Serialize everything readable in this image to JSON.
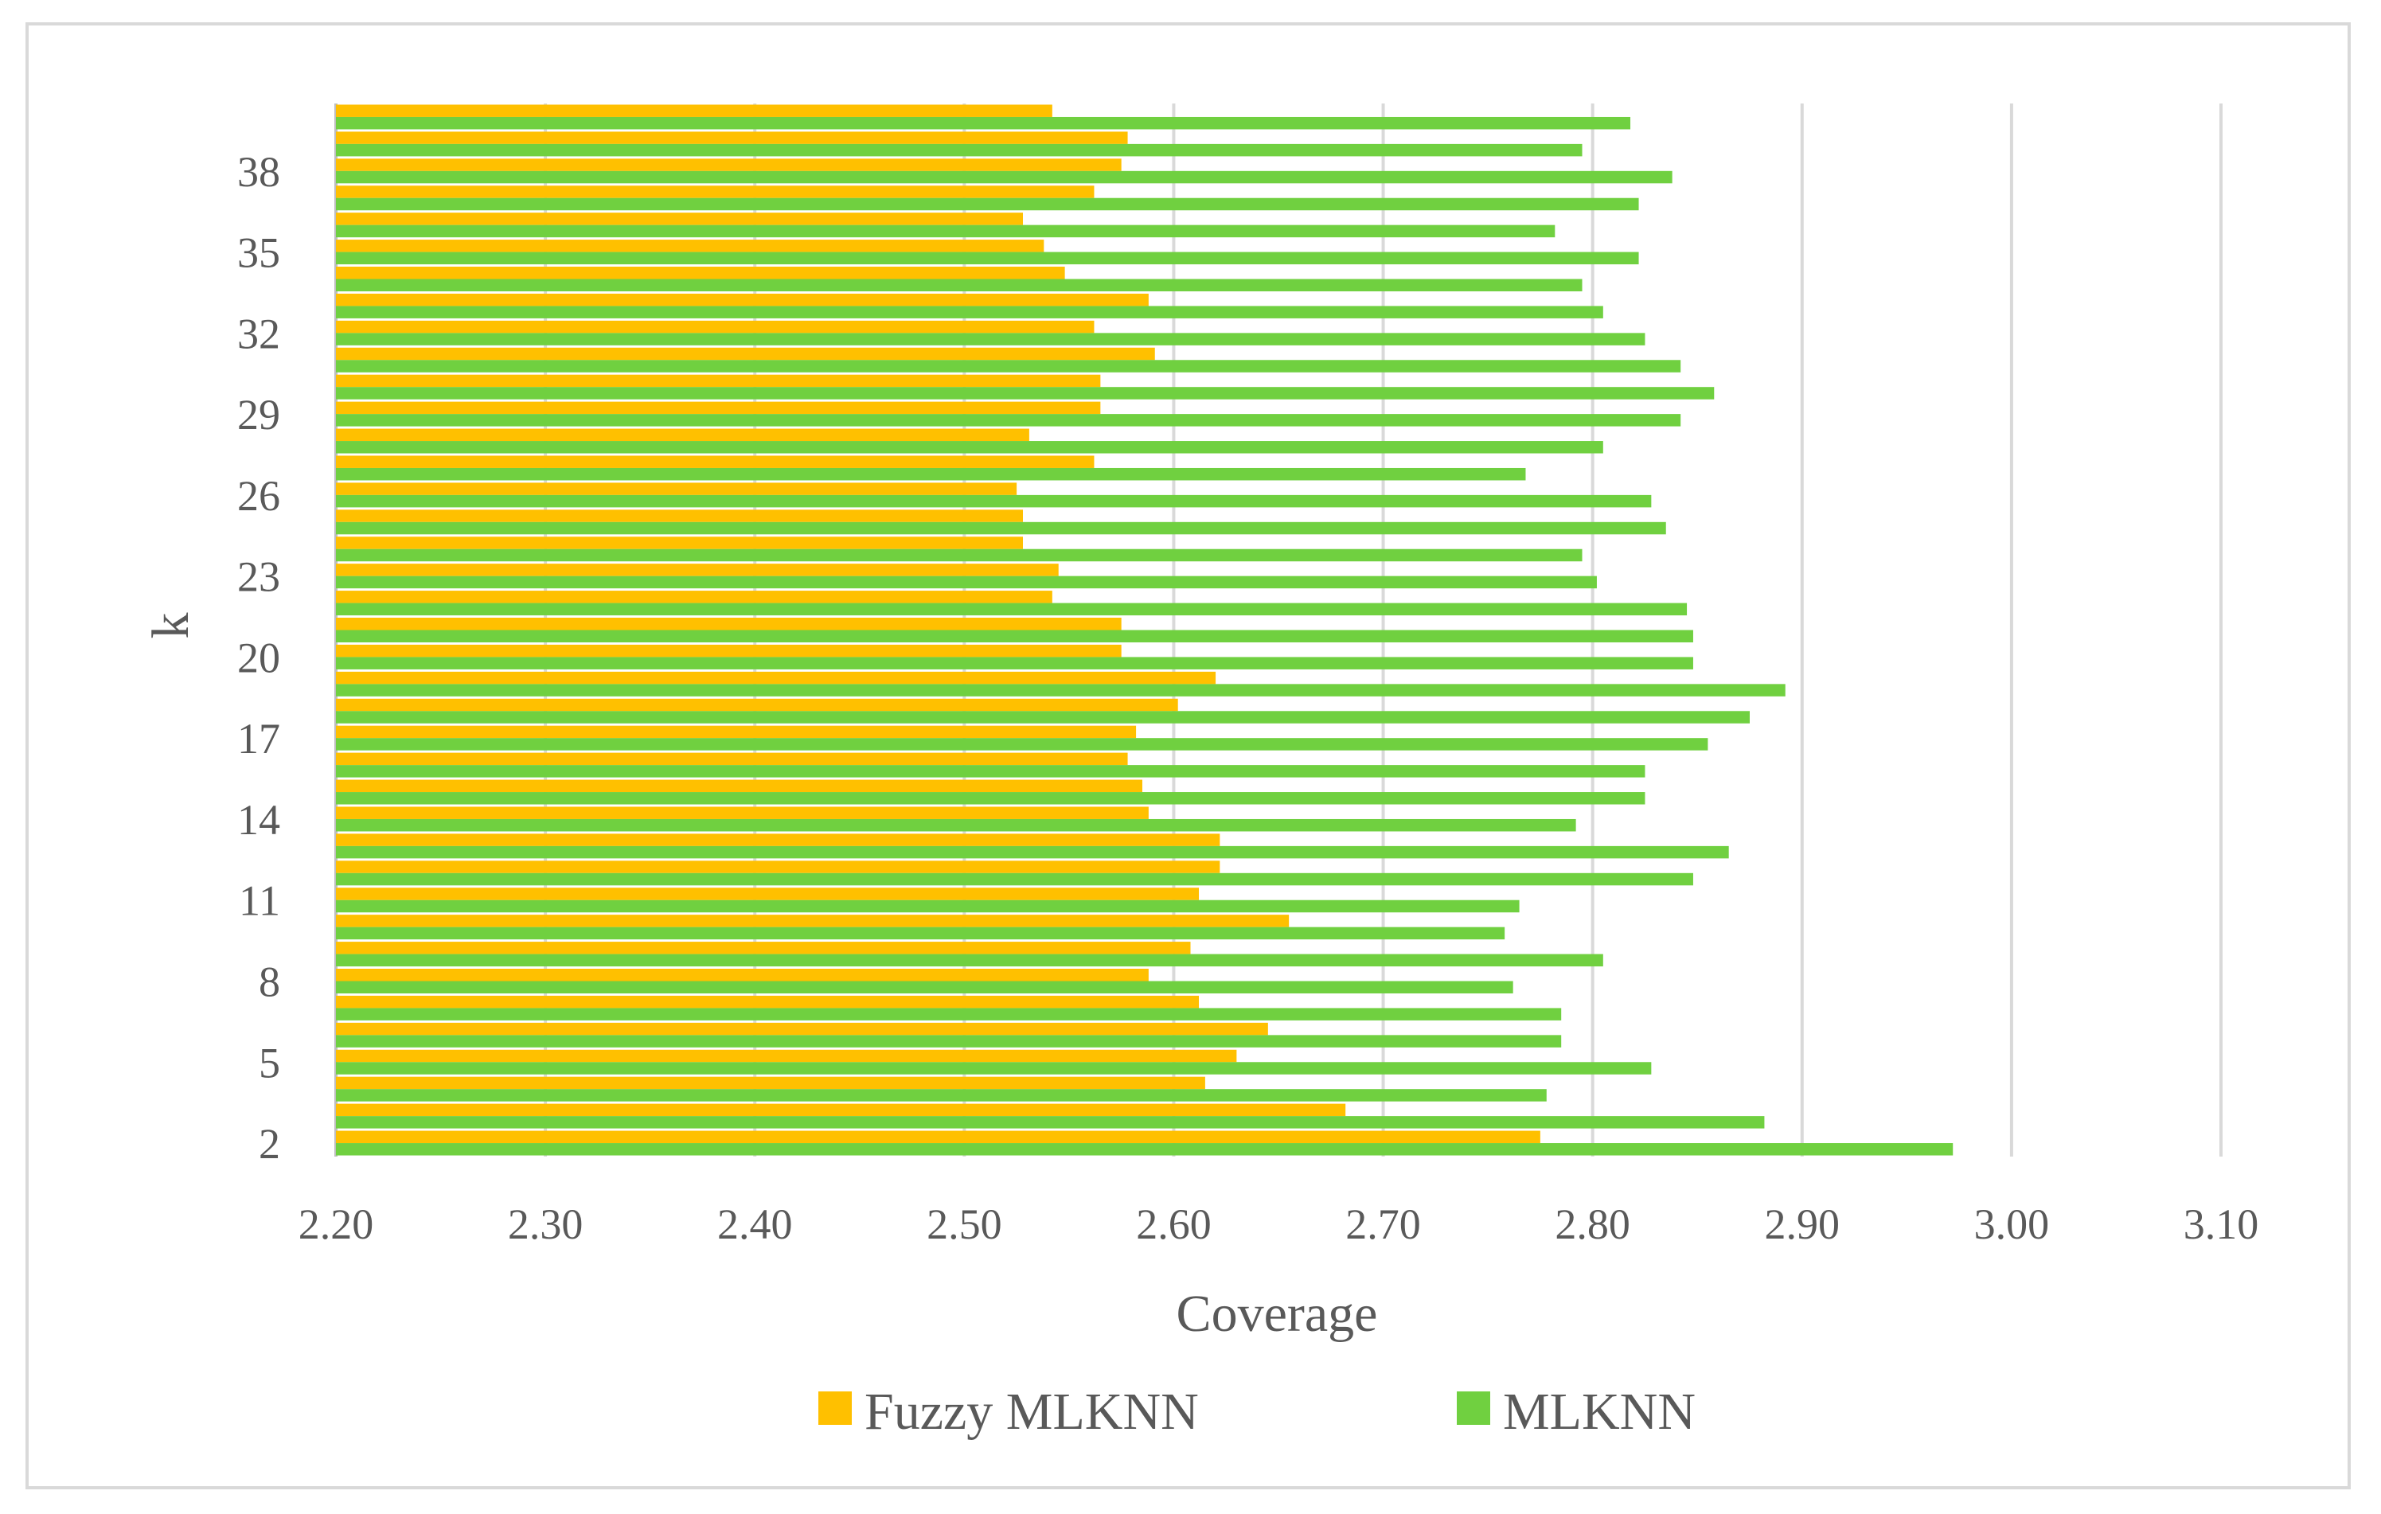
{
  "chart_data": {
    "type": "bar",
    "orientation": "horizontal",
    "title": "",
    "xlabel": "Coverage",
    "ylabel": "k",
    "xlim": [
      2.2,
      3.1
    ],
    "x_ticks": [
      "2.20",
      "2.30",
      "2.40",
      "2.50",
      "2.60",
      "2.70",
      "2.80",
      "2.90",
      "3.00",
      "3.10"
    ],
    "categories": [
      2,
      3,
      4,
      5,
      6,
      7,
      8,
      9,
      10,
      11,
      12,
      13,
      14,
      15,
      16,
      17,
      18,
      19,
      20,
      21,
      22,
      23,
      24,
      25,
      26,
      27,
      28,
      29,
      30,
      31,
      32,
      33,
      34,
      35,
      36,
      37,
      38,
      39,
      40
    ],
    "y_tick_labels": [
      "2",
      "5",
      "8",
      "11",
      "14",
      "17",
      "20",
      "23",
      "26",
      "29",
      "32",
      "35",
      "38"
    ],
    "y_tick_categories": [
      2,
      5,
      8,
      11,
      14,
      17,
      20,
      23,
      26,
      29,
      32,
      35,
      38
    ],
    "grid": true,
    "legend_position": "bottom",
    "series": [
      {
        "name": "Fuzzy MLKNN",
        "color": "#FFC000",
        "values": [
          2.775,
          2.682,
          2.615,
          2.63,
          2.645,
          2.612,
          2.588,
          2.608,
          2.655,
          2.612,
          2.622,
          2.622,
          2.588,
          2.585,
          2.578,
          2.582,
          2.602,
          2.62,
          2.575,
          2.575,
          2.542,
          2.545,
          2.528,
          2.528,
          2.525,
          2.562,
          2.531,
          2.565,
          2.565,
          2.591,
          2.562,
          2.588,
          2.548,
          2.538,
          2.528,
          2.562,
          2.575,
          2.578,
          2.542
        ]
      },
      {
        "name": "MLKNN",
        "color": "#70D040",
        "values": [
          2.972,
          2.882,
          2.778,
          2.828,
          2.785,
          2.785,
          2.762,
          2.805,
          2.758,
          2.765,
          2.848,
          2.865,
          2.792,
          2.825,
          2.825,
          2.855,
          2.875,
          2.892,
          2.848,
          2.848,
          2.845,
          2.802,
          2.795,
          2.835,
          2.828,
          2.768,
          2.805,
          2.842,
          2.858,
          2.842,
          2.825,
          2.805,
          2.795,
          2.822,
          2.782,
          2.822,
          2.838,
          2.795,
          2.818
        ]
      }
    ]
  }
}
